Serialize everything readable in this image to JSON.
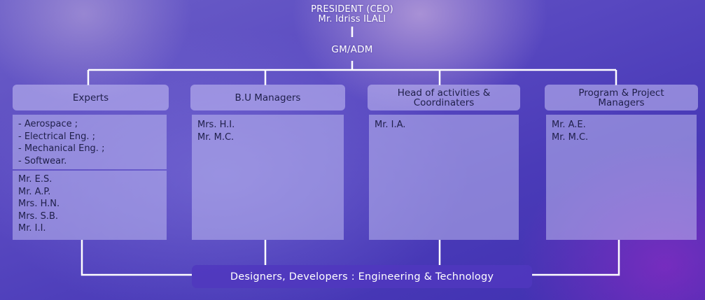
{
  "top": {
    "role": "PRESIDENT (CEO)",
    "name": "Mr. Idriss ILALI",
    "gm": "GM/ADM"
  },
  "columns": [
    {
      "header_lines": [
        "Experts"
      ],
      "fields": [
        "- Aerospace ;",
        "- Electrical Eng. ;",
        "- Mechanical Eng. ;",
        "- Softwear."
      ],
      "members": [
        "Mr. E.S.",
        "Mr. A.P.",
        "Mrs. H.N.",
        "Mrs. S.B.",
        "Mr. I.I."
      ]
    },
    {
      "header_lines": [
        "B.U Managers"
      ],
      "members": [
        "Mrs. H.I.",
        "Mr. M.C."
      ]
    },
    {
      "header_lines": [
        "Head of activities &",
        "Coordinaters"
      ],
      "members": [
        "Mr. I.A."
      ]
    },
    {
      "header_lines": [
        "Program & Project",
        "Managers"
      ],
      "members": [
        "Mr. A.E.",
        "Mr. M.C."
      ]
    }
  ],
  "bottom": "Designers, Developers : Engineering & Technology"
}
